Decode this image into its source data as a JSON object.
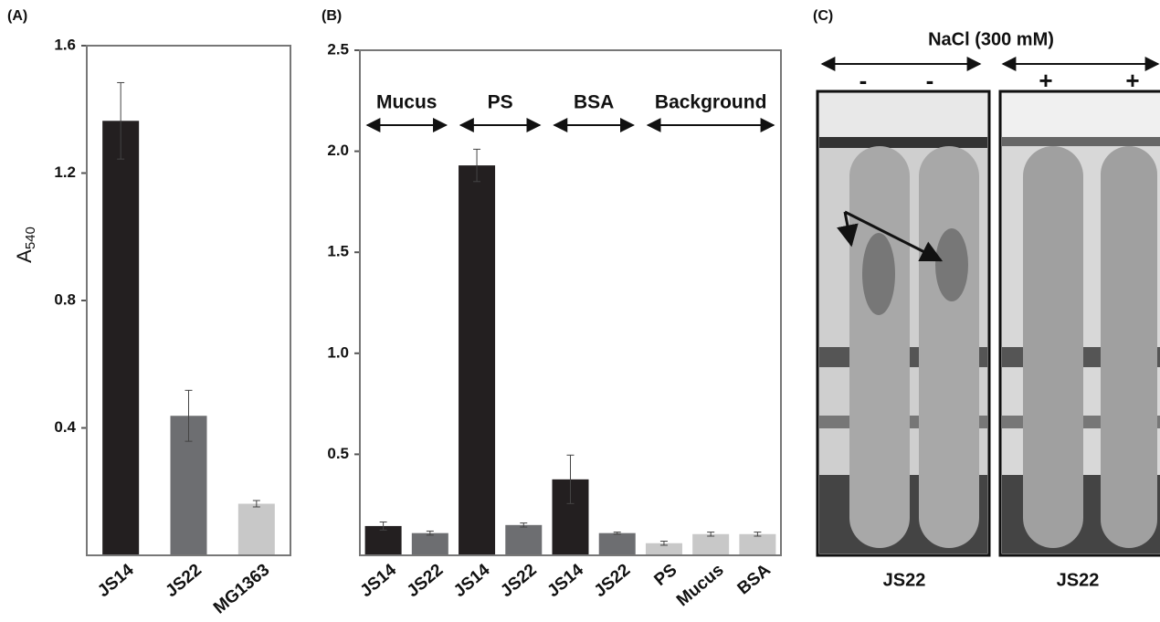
{
  "chart_data": [
    {
      "type": "bar",
      "panel": "(A)",
      "ylabel": "A",
      "ylabel_sub": "540",
      "categories": [
        "JS14",
        "JS22",
        "MG1363"
      ],
      "values": [
        1.364,
        0.438,
        0.162
      ],
      "errors": [
        0.12,
        0.08,
        0.01
      ],
      "colors": [
        "#231f20",
        "#6d6e71",
        "#c8c8c8"
      ],
      "ylim": [
        0,
        1.6
      ],
      "yticks": [
        0.4,
        0.8,
        1.2,
        1.6
      ]
    },
    {
      "type": "bar",
      "panel": "(B)",
      "categories": [
        "JS14",
        "JS22",
        "JS14",
        "JS22",
        "JS14",
        "JS22",
        "PS",
        "Mucus",
        "BSA"
      ],
      "values": [
        0.145,
        0.11,
        1.93,
        0.15,
        0.376,
        0.11,
        0.06,
        0.105,
        0.105
      ],
      "errors": [
        0.02,
        0.01,
        0.08,
        0.01,
        0.12,
        0.005,
        0.01,
        0.01,
        0.01
      ],
      "colors": [
        "#231f20",
        "#6d6e71",
        "#231f20",
        "#6d6e71",
        "#231f20",
        "#6d6e71",
        "#c8c8c8",
        "#c8c8c8",
        "#c8c8c8"
      ],
      "groups": [
        "Mucus",
        "PS",
        "BSA",
        "Background"
      ],
      "ylim": [
        0,
        2.5
      ],
      "yticks": [
        0.5,
        {
          "value": 1,
          "label": "1.0"
        },
        1.5,
        {
          "value": 2,
          "label": "2.0"
        },
        2.5
      ]
    }
  ],
  "panel_c": {
    "panel": "(C)",
    "title": "NaCl (300 mM)",
    "signs": [
      "-",
      "-",
      "+",
      "+"
    ],
    "captions": [
      "JS22",
      "JS22"
    ]
  }
}
